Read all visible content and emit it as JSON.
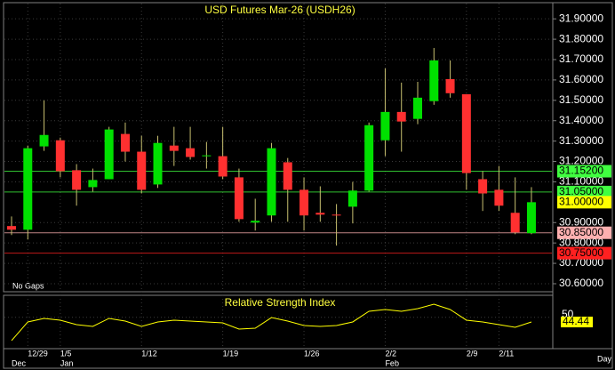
{
  "chart_data": [
    {
      "type": "candlestick",
      "title": "USD Futures Mar-26 (USDH26)",
      "note": "No Gaps",
      "categories": [
        null,
        "12/29",
        null,
        "1/5",
        null,
        null,
        null,
        null,
        "1/12",
        null,
        null,
        null,
        null,
        "1/19",
        null,
        null,
        null,
        null,
        "1/26",
        null,
        null,
        null,
        null,
        "2/2",
        null,
        null,
        null,
        null,
        "2/9",
        null,
        "2/11",
        null,
        null
      ],
      "months": [
        "Dec",
        null,
        null,
        "Jan",
        null,
        null,
        null,
        null,
        null,
        null,
        null,
        null,
        null,
        null,
        null,
        null,
        null,
        null,
        null,
        null,
        null,
        null,
        null,
        "Feb",
        null,
        null,
        null,
        null,
        null,
        null,
        null,
        null,
        null
      ],
      "x_label": "Day",
      "open": [
        30.883,
        30.865,
        31.274,
        31.304,
        31.157,
        31.074,
        31.113,
        31.335,
        31.248,
        31.087,
        31.278,
        31.265,
        31.226,
        31.226,
        31.122,
        30.9,
        30.935,
        31.196,
        31.061,
        30.948,
        30.939,
        30.978,
        31.057,
        31.304,
        31.443,
        31.409,
        31.496,
        31.604,
        31.53,
        31.113,
        31.061,
        30.948,
        30.848
      ],
      "high": [
        30.93,
        31.278,
        31.5,
        31.317,
        31.187,
        31.165,
        31.37,
        31.391,
        31.326,
        31.326,
        31.37,
        31.37,
        31.296,
        31.37,
        31.165,
        31.017,
        31.291,
        31.217,
        31.122,
        31.078,
        30.991,
        31.1,
        31.391,
        31.657,
        31.587,
        31.591,
        31.757,
        31.696,
        31.53,
        31.152,
        31.178,
        31.122,
        31.074
      ],
      "low": [
        30.839,
        30.817,
        31.252,
        31.122,
        30.983,
        31.052,
        31.113,
        31.2,
        31.043,
        31.07,
        31.178,
        31.209,
        31.165,
        31.113,
        30.904,
        30.861,
        30.904,
        30.904,
        30.861,
        30.904,
        30.787,
        30.896,
        31.052,
        31.226,
        31.248,
        31.383,
        31.478,
        31.513,
        31.061,
        30.957,
        30.957,
        30.843,
        30.843
      ],
      "close": [
        30.865,
        31.265,
        31.33,
        31.152,
        31.061,
        31.109,
        31.357,
        31.248,
        31.061,
        31.291,
        31.252,
        31.222,
        31.23,
        31.126,
        30.917,
        30.909,
        31.265,
        31.061,
        30.935,
        30.939,
        30.935,
        31.057,
        31.378,
        31.443,
        31.396,
        31.513,
        31.696,
        31.535,
        31.143,
        31.043,
        30.983,
        30.852,
        31.0
      ],
      "up_color": "#00e000",
      "down_color": "#ff3030",
      "wick_color": "#c8c070",
      "ylim": [
        30.565,
        31.975
      ],
      "yticks": [
        {
          "value": 31.9,
          "label": "31.90000"
        },
        {
          "value": 31.8,
          "label": "31.80000"
        },
        {
          "value": 31.7,
          "label": "31.70000"
        },
        {
          "value": 31.6,
          "label": "31.60000"
        },
        {
          "value": 31.5,
          "label": "31.50000"
        },
        {
          "value": 31.4,
          "label": "31.40000"
        },
        {
          "value": 31.3,
          "label": "31.30000"
        },
        {
          "value": 31.2,
          "label": "31.20000"
        },
        {
          "value": 31.1,
          "label": "31.10000"
        },
        {
          "value": 30.9,
          "label": "30.90000"
        },
        {
          "value": 30.8,
          "label": "30.80000"
        },
        {
          "value": 30.7,
          "label": "30.70000"
        },
        {
          "value": 30.6,
          "label": "30.60000"
        }
      ],
      "levels": [
        {
          "value": 31.152,
          "label": "31.15200",
          "color": "#40ff40"
        },
        {
          "value": 31.05,
          "label": "31.05000",
          "color": "#40ff40"
        },
        {
          "value": 30.85,
          "label": "30.85000",
          "color": "#ffb0b0"
        },
        {
          "value": 30.75,
          "label": "30.75000",
          "color": "#ff2020"
        }
      ],
      "last_price": {
        "value": 31.0,
        "label": "31.00000",
        "color": "#ffff00"
      },
      "grid": true
    },
    {
      "type": "line",
      "title": "Relative Strength Index",
      "color": "#ffff00",
      "values": [
        22.4,
        44.5,
        48.7,
        46.6,
        41.3,
        39.2,
        48.7,
        45.5,
        39.2,
        44.5,
        46.6,
        45.5,
        44.5,
        43.4,
        36.1,
        37.1,
        49.7,
        45.5,
        40.3,
        39.2,
        40.3,
        44.5,
        57.1,
        59.2,
        57.1,
        60.3,
        65.5,
        59.2,
        46.6,
        44.5,
        41.3,
        38.2,
        44.44
      ],
      "ylim": [
        15,
        75
      ],
      "yticks": [
        50
      ],
      "grid": true
    }
  ]
}
